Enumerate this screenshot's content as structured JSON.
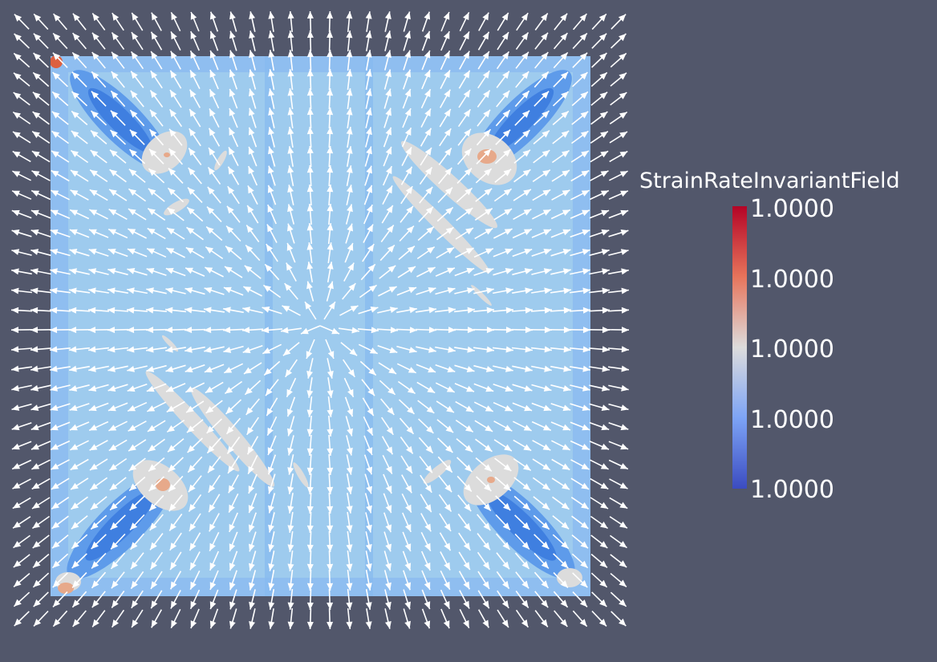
{
  "legend": {
    "title": "StrainRateInvariantField",
    "ticks": [
      "1.0000",
      "1.0000",
      "1.0000",
      "1.0000",
      "1.0000"
    ],
    "colormap": [
      "#b40426",
      "#e7745b",
      "#dddcdc",
      "#7da4f6",
      "#3b4cc0"
    ]
  },
  "colors": {
    "background": "#52576b",
    "field_base": "#9ecbee",
    "field_band": "#5e9bea",
    "field_dark": "#3f7fe0",
    "field_gray": "#dcdcdc",
    "field_warm": "#e7a98a",
    "arrow": "#ffffff"
  },
  "icons": {
    "glyph": "arrow-glyph"
  }
}
